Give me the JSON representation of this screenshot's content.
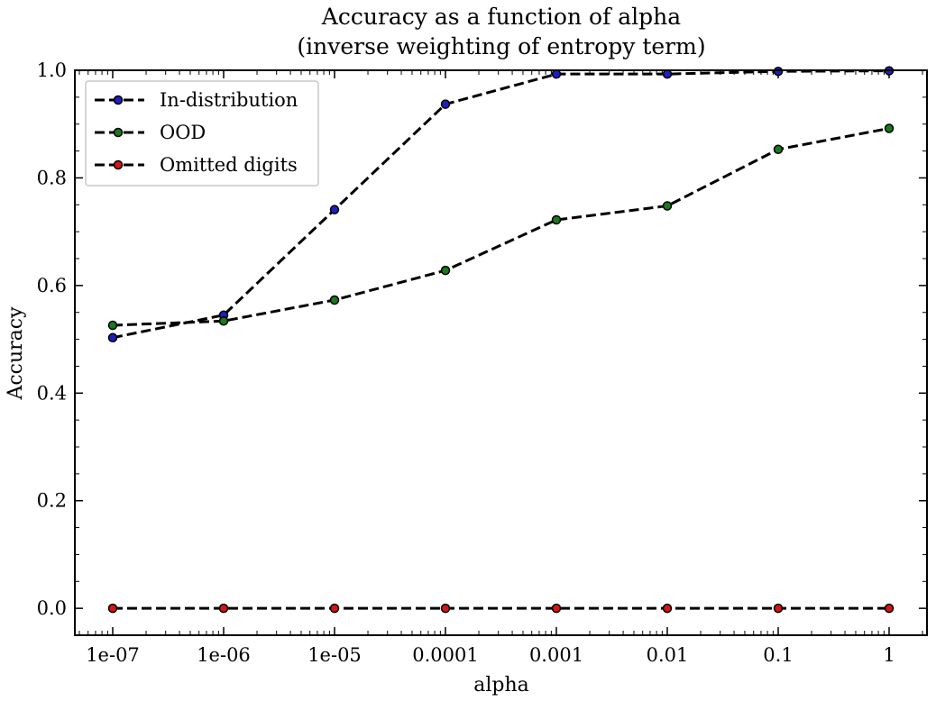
{
  "chart_data": {
    "type": "line",
    "title": "Accuracy as a function of alpha",
    "subtitle": "(inverse weighting of entropy term)",
    "xlabel": "alpha",
    "ylabel": "Accuracy",
    "categories": [
      "1e-07",
      "1e-06",
      "1e-05",
      "0.0001",
      "0.001",
      "0.01",
      "0.1",
      "1"
    ],
    "x_scale": "log",
    "ylim": [
      -0.05,
      1.0
    ],
    "yticks": [
      "0.0",
      "0.2",
      "0.4",
      "0.6",
      "0.8",
      "1.0"
    ],
    "grid": false,
    "legend_position": "top-left",
    "line_style": "dashed",
    "line_color": "#000000",
    "series": [
      {
        "name": "In-distribution",
        "marker_color": "#1f1fbf",
        "values": [
          0.503,
          0.545,
          0.741,
          0.937,
          0.993,
          0.993,
          0.998,
          0.999
        ]
      },
      {
        "name": "OOD",
        "marker_color": "#1a7a1a",
        "values": [
          0.526,
          0.534,
          0.573,
          0.628,
          0.722,
          0.748,
          0.853,
          0.892
        ]
      },
      {
        "name": "Omitted digits",
        "marker_color": "#d41515",
        "values": [
          0.0,
          0.0,
          0.0,
          0.0,
          0.0,
          0.0,
          0.0,
          0.0
        ]
      }
    ]
  }
}
